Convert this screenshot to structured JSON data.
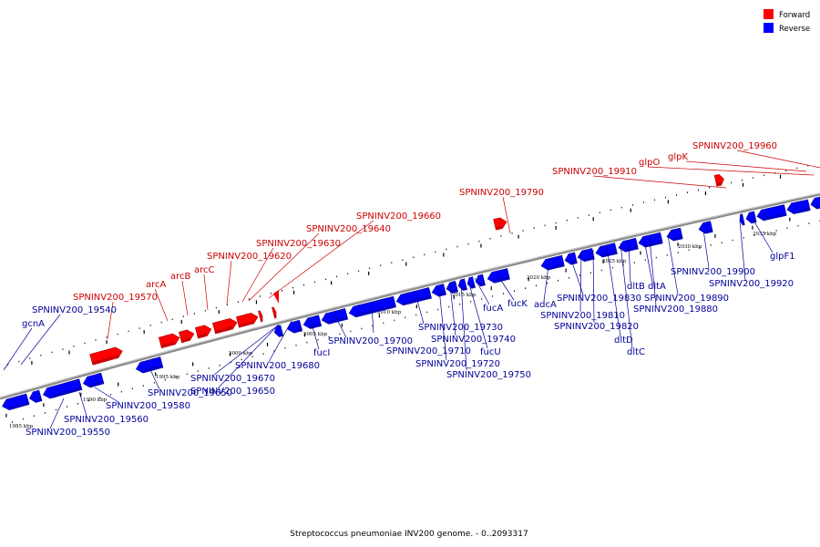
{
  "caption": "Streptococcus pneumoniae INV200 genome. - 0..2093317",
  "legend": [
    {
      "label": "Forward",
      "color": "#ff0000"
    },
    {
      "label": "Reverse",
      "color": "#0000ff"
    }
  ],
  "colors": {
    "forward": "#ff0000",
    "reverse": "#0000ff",
    "backbone": "#8a8a8a"
  },
  "scale_labels": [
    "1985 kbp",
    "1990 kbp",
    "1995 kbp",
    "2000 kbp",
    "2005 kbp",
    "2010 kbp",
    "2015 kbp",
    "2020 kbp",
    "2025 kbp",
    "2030 kbp",
    "2035 kbp"
  ],
  "forward_labels": [
    "arcA",
    "arcB",
    "arcC",
    "SPNINV200_19570",
    "SPNINV200_19620",
    "SPNINV200_19630",
    "SPNINV200_19640",
    "SPNINV200_19660",
    "SPNINV200_19790",
    "SPNINV200_19910",
    "glpO",
    "glpK",
    "SPNINV200_19960"
  ],
  "reverse_labels": [
    "gcnA",
    "SPNINV200_19540",
    "SPNINV200_19550",
    "SPNINV200_19560",
    "SPNINV200_19580",
    "SPNINV200_19650",
    "SPNINV200_19670",
    "SPNINV200_19680",
    "fucI",
    "SPNINV200_19700",
    "SPNINV200_19710",
    "SPNINV200_19720",
    "SPNINV200_19730",
    "SPNINV200_19740",
    "SPNINV200_19750",
    "fucU",
    "fucA",
    "fucK",
    "adcA",
    "SPNINV200_19810",
    "SPNINV200_19820",
    "SPNINV200_19830",
    "dltD",
    "dltC",
    "dltB",
    "dltA",
    "SPNINV200_19880",
    "SPNINV200_19890",
    "SPNINV200_19900",
    "SPNINV200_19920",
    "glpF1"
  ]
}
